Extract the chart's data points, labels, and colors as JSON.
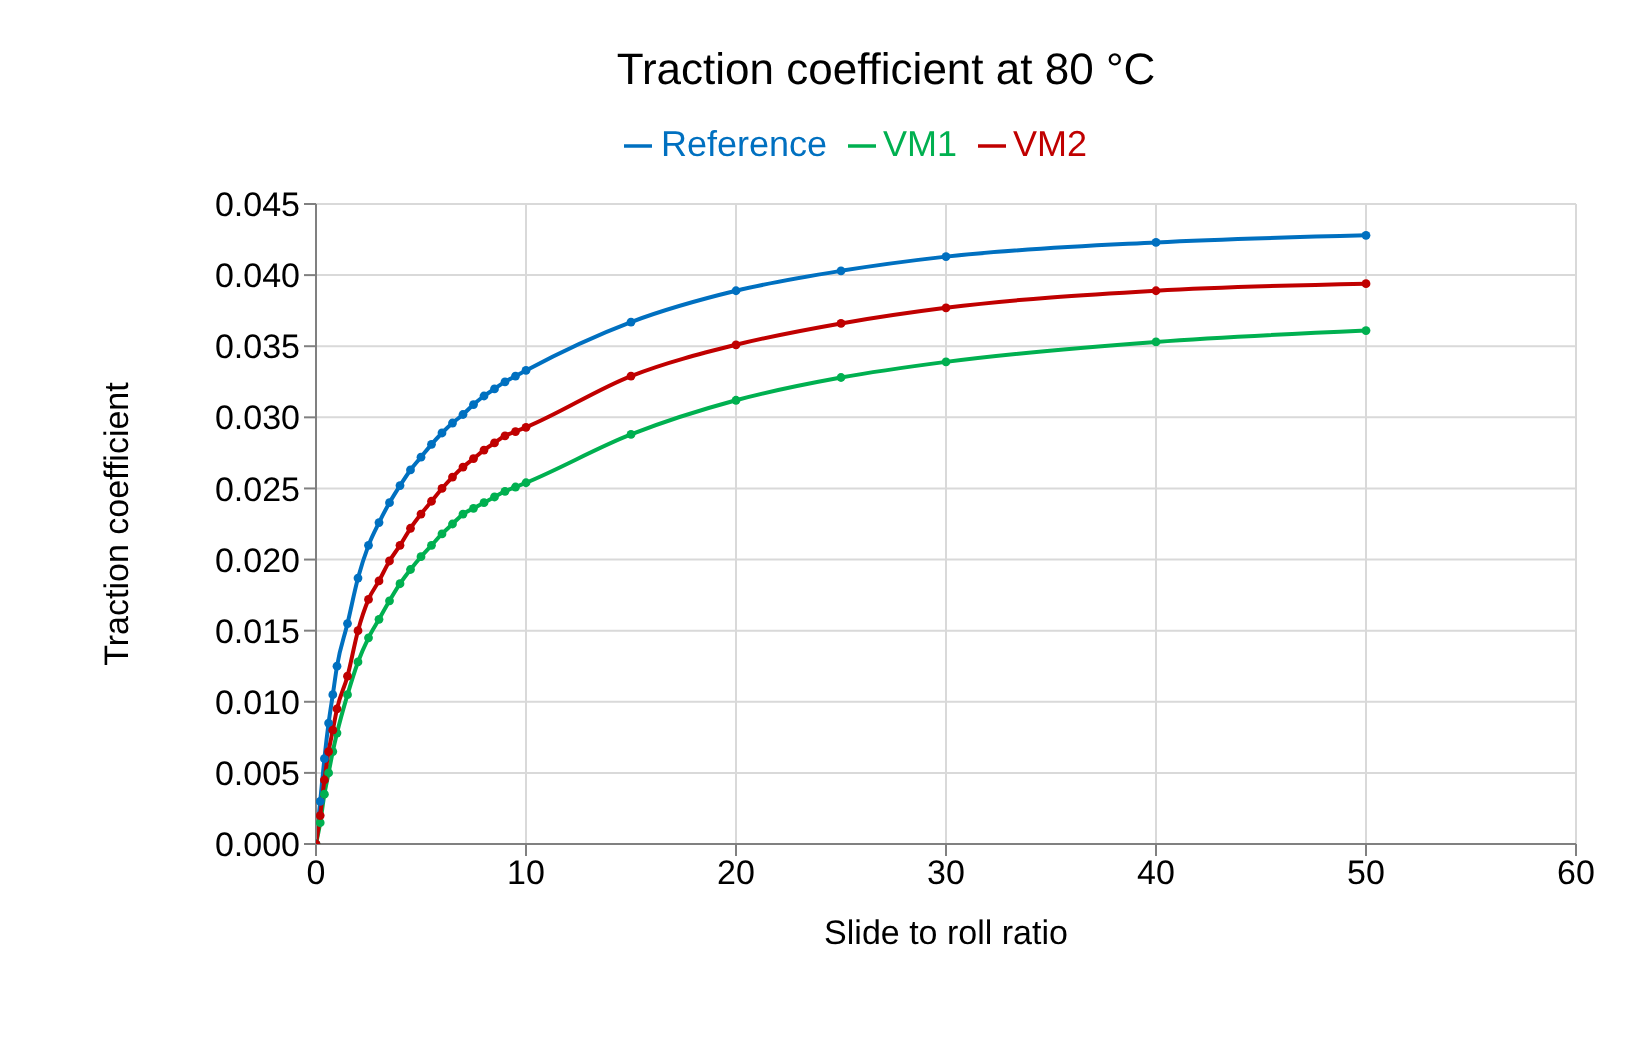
{
  "chart_data": {
    "type": "line",
    "title": "Traction coefficient at 80 °C",
    "xlabel": "Slide to roll ratio",
    "ylabel": "Traction coefficient",
    "x": [
      0,
      0.2,
      0.4,
      0.6,
      0.8,
      1,
      1.5,
      2,
      2.5,
      3,
      3.5,
      4,
      4.5,
      5,
      5.5,
      6,
      6.5,
      7,
      7.5,
      8,
      8.5,
      9,
      9.5,
      10,
      15,
      20,
      25,
      30,
      40,
      50
    ],
    "series": [
      {
        "name": "Reference",
        "color": "#0070c0",
        "values": [
          0,
          0.003,
          0.006,
          0.0085,
          0.0105,
          0.0125,
          0.0155,
          0.0187,
          0.021,
          0.0226,
          0.024,
          0.0252,
          0.0263,
          0.0272,
          0.0281,
          0.0289,
          0.0296,
          0.0302,
          0.0309,
          0.0315,
          0.032,
          0.0325,
          0.0329,
          0.0333,
          0.0367,
          0.0389,
          0.0403,
          0.0413,
          0.0423,
          0.0428
        ]
      },
      {
        "name": "VM1",
        "color": "#00b050",
        "values": [
          0,
          0.0015,
          0.0035,
          0.005,
          0.0065,
          0.0078,
          0.0105,
          0.0128,
          0.0145,
          0.0158,
          0.0171,
          0.0183,
          0.0193,
          0.0202,
          0.021,
          0.0218,
          0.0225,
          0.0232,
          0.0236,
          0.024,
          0.0244,
          0.0248,
          0.0251,
          0.0254,
          0.0288,
          0.0312,
          0.0328,
          0.0339,
          0.0353,
          0.0361
        ]
      },
      {
        "name": "VM2",
        "color": "#c00000",
        "values": [
          0,
          0.002,
          0.0045,
          0.0065,
          0.008,
          0.0095,
          0.0118,
          0.015,
          0.0172,
          0.0185,
          0.0199,
          0.021,
          0.0222,
          0.0232,
          0.0241,
          0.025,
          0.0258,
          0.0265,
          0.0271,
          0.0277,
          0.0282,
          0.0287,
          0.029,
          0.0293,
          0.0329,
          0.0351,
          0.0366,
          0.0377,
          0.0389,
          0.0394
        ]
      }
    ],
    "xlim": [
      0,
      60
    ],
    "xticks": [
      0,
      10,
      20,
      30,
      40,
      50,
      60
    ],
    "ylim": [
      0,
      0.045
    ],
    "yticks": [
      {
        "value": 0,
        "label": "0.000"
      },
      {
        "value": 0.005,
        "label": "0.005"
      },
      {
        "value": 0.01,
        "label": "0.010"
      },
      {
        "value": 0.015,
        "label": "0.015"
      },
      {
        "value": 0.02,
        "label": "0.020"
      },
      {
        "value": 0.025,
        "label": "0.025"
      },
      {
        "value": 0.03,
        "label": "0.030"
      },
      {
        "value": 0.035,
        "label": "0.035"
      },
      {
        "value": 0.04,
        "label": "0.040"
      },
      {
        "value": 0.045,
        "label": "0.045"
      }
    ],
    "grid": true,
    "legend": "top",
    "marker": "circle",
    "line_style": "solid"
  }
}
